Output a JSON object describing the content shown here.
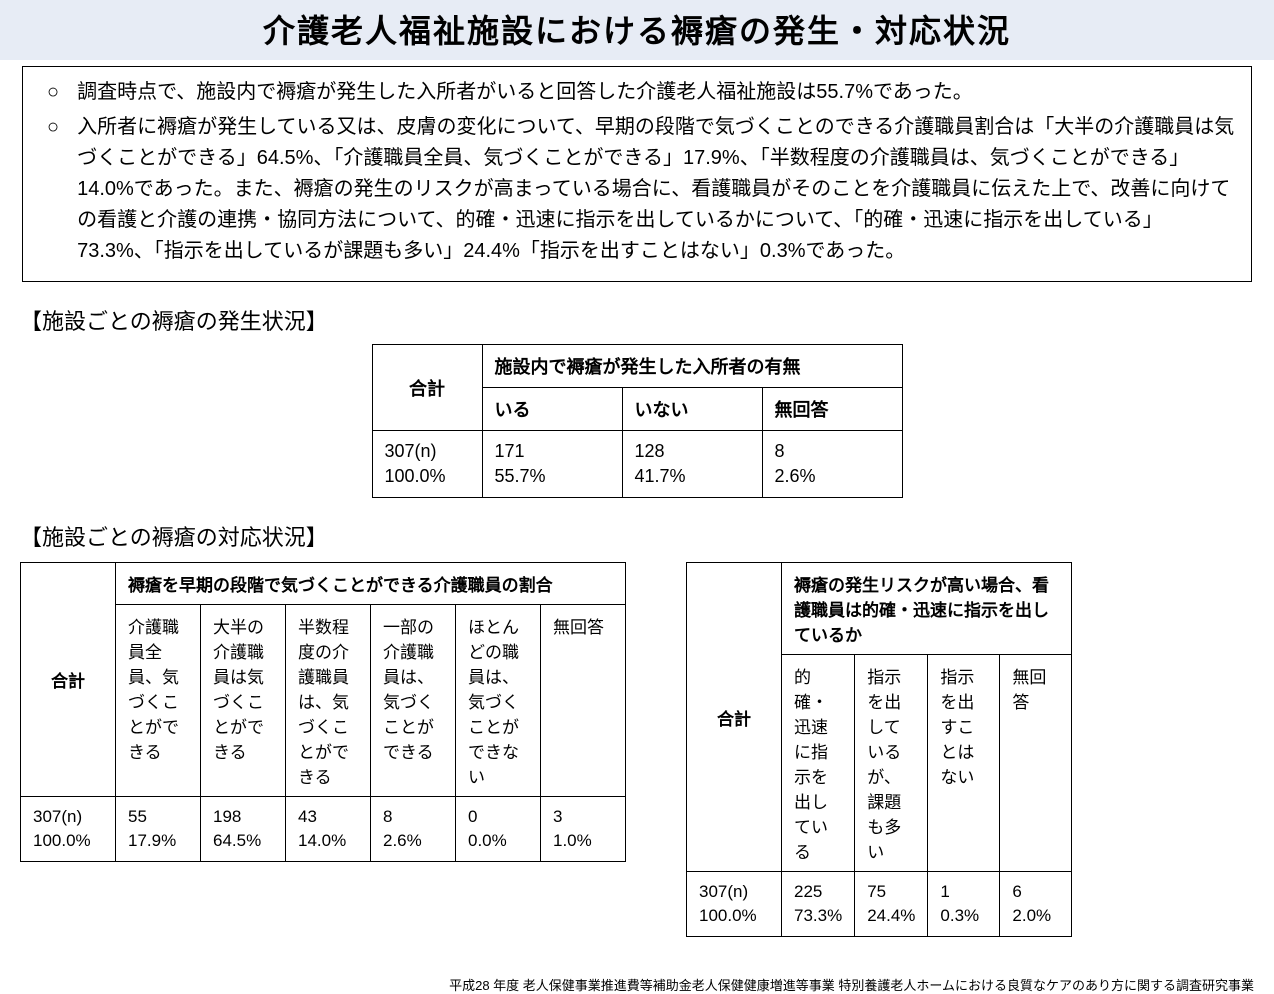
{
  "title": "介護老人福祉施設における褥瘡の発生・対応状況",
  "summary": {
    "bullet": "○",
    "items": [
      "調査時点で、施設内で褥瘡が発生した入所者がいると回答した介護老人福祉施設は55.7%であった。",
      "入所者に褥瘡が発生している又は、皮膚の変化について、早期の段階で気づくことのできる介護職員割合は「大半の介護職員は気づくことができる」64.5%、「介護職員全員、気づくことができる」17.9%、「半数程度の介護職員は、気づくことができる」14.0%であった。また、褥瘡の発生のリスクが高まっている場合に、看護職員がそのことを介護職員に伝えた上で、改善に向けての看護と介護の連携・協同方法について、的確・迅速に指示を出しているかについて、「的確・迅速に指示を出している」73.3%、「指示を出しているが課題も多い」24.4%「指示を出すことはない」0.3%であった。"
    ]
  },
  "section1_head": "【施設ごとの褥瘡の発生状況】",
  "table1": {
    "goukei_label": "合計",
    "top_header": "施設内で褥瘡が発生した入所者の有無",
    "subheaders": [
      "いる",
      "いない",
      "無回答"
    ],
    "row_goukei_n": "307(n)",
    "row_goukei_p": "100.0%",
    "cells": [
      {
        "n": "171",
        "p": "55.7%"
      },
      {
        "n": "128",
        "p": "41.7%"
      },
      {
        "n": "8",
        "p": "2.6%"
      }
    ]
  },
  "section2_head": "【施設ごとの褥瘡の対応状況】",
  "table2": {
    "goukei_label": "合計",
    "top_header": "褥瘡を早期の段階で気づくことができる介護職員の割合",
    "subheaders": [
      "介護職員全員、気づくことができる",
      "大半の介護職員は気づくことができる",
      "半数程度の介護職員は、気づくことができる",
      "一部の介護職員は、気づくことができる",
      "ほとんどの職員は、気づくことができない",
      "無回答"
    ],
    "row_goukei_n": "307(n)",
    "row_goukei_p": "100.0%",
    "cells": [
      {
        "n": "55",
        "p": "17.9%"
      },
      {
        "n": "198",
        "p": "64.5%"
      },
      {
        "n": "43",
        "p": "14.0%"
      },
      {
        "n": "8",
        "p": "2.6%"
      },
      {
        "n": "0",
        "p": "0.0%"
      },
      {
        "n": "3",
        "p": "1.0%"
      }
    ]
  },
  "table3": {
    "goukei_label": "合計",
    "top_header": "褥瘡の発生リスクが高い場合、看護職員は的確・迅速に指示を出しているか",
    "subheaders": [
      "的確・迅速に指示を出している",
      "指示を出しているが、課題も多い",
      "指示を出すことはない",
      "無回答"
    ],
    "row_goukei_n": "307(n)",
    "row_goukei_p": "100.0%",
    "cells": [
      {
        "n": "225",
        "p": "73.3%"
      },
      {
        "n": "75",
        "p": "24.4%"
      },
      {
        "n": "1",
        "p": "0.3%"
      },
      {
        "n": "6",
        "p": "2.0%"
      }
    ]
  },
  "footer": "平成28 年度 老人保健事業推進費等補助金老人保健健康増進等事業 特別養護老人ホームにおける良質なケアのあり方に関する調査研究事業",
  "colors": {
    "title_bg": "#e7ecf5",
    "border": "#000000",
    "text": "#000000",
    "bg": "#ffffff"
  }
}
